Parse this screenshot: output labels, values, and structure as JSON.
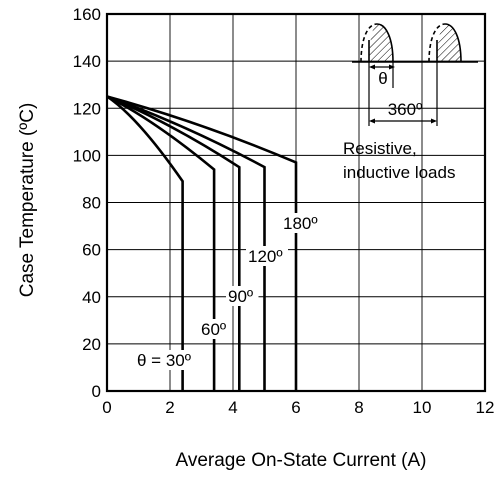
{
  "chart_data": {
    "type": "line",
    "title": "",
    "xlabel": "Average On-State Current  (A)",
    "ylabel": "Case Temperature  (ºC)",
    "xlim": [
      0,
      12
    ],
    "ylim": [
      0,
      160
    ],
    "x_ticks": [
      0,
      2,
      4,
      6,
      8,
      10,
      12
    ],
    "y_ticks": [
      0,
      20,
      40,
      60,
      80,
      100,
      120,
      140,
      160
    ],
    "grid": true,
    "series": [
      {
        "name": "θ = 30º",
        "points": [
          [
            0,
            125
          ],
          [
            1,
            116
          ],
          [
            2.4,
            89
          ],
          [
            2.4,
            0
          ]
        ]
      },
      {
        "name": "60º",
        "points": [
          [
            0,
            125
          ],
          [
            1.5,
            115
          ],
          [
            3.4,
            94
          ],
          [
            3.4,
            0
          ]
        ]
      },
      {
        "name": "90º",
        "points": [
          [
            0,
            125
          ],
          [
            2,
            114
          ],
          [
            4.2,
            95
          ],
          [
            4.2,
            0
          ]
        ]
      },
      {
        "name": "120º",
        "points": [
          [
            0,
            125
          ],
          [
            2.5,
            113
          ],
          [
            5.0,
            95
          ],
          [
            5.0,
            0
          ]
        ]
      },
      {
        "name": "180º",
        "points": [
          [
            0,
            125
          ],
          [
            3,
            114
          ],
          [
            6.0,
            97
          ],
          [
            6.0,
            0
          ]
        ]
      }
    ],
    "annotations": {
      "conduction_angle_symbol": "θ",
      "period_label": "360º",
      "load_note_line1": "Resistive,",
      "load_note_line2": "inductive loads"
    }
  }
}
